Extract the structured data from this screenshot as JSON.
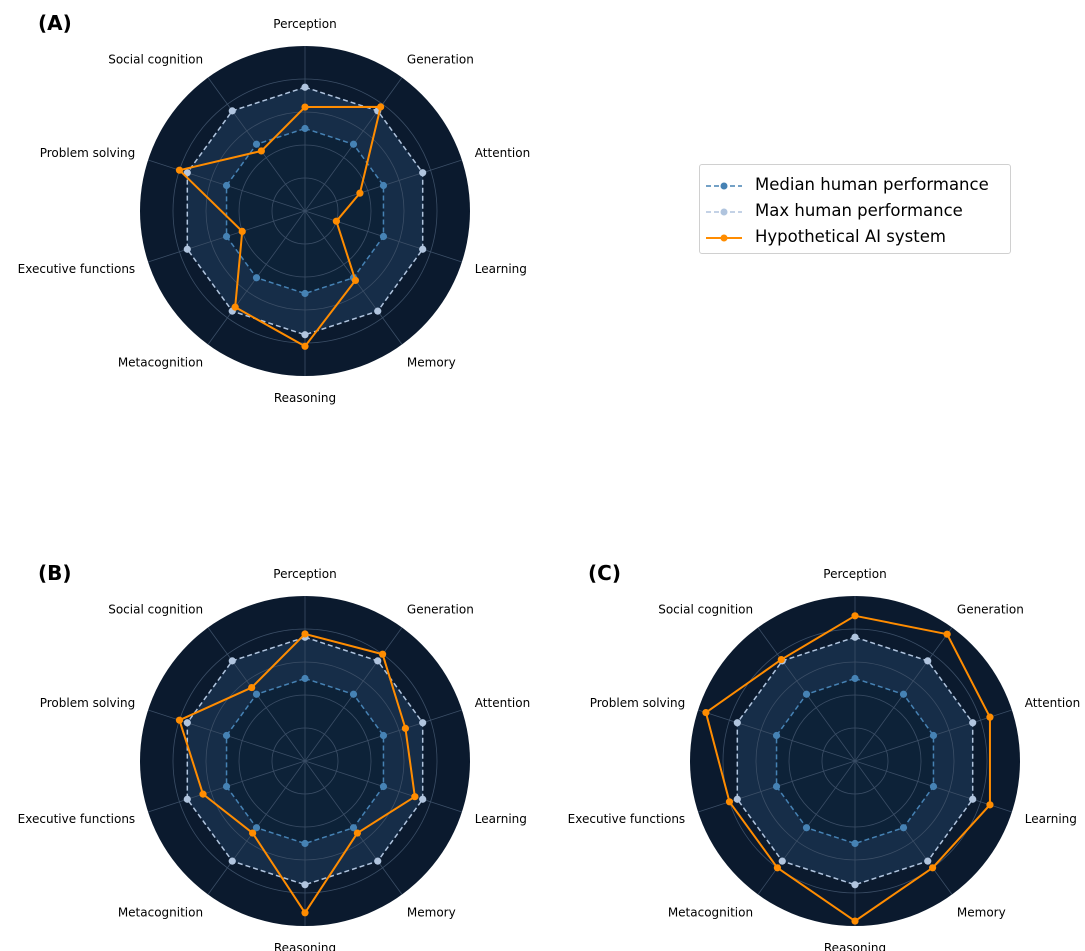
{
  "colors": {
    "background": "#0b1a2e",
    "human_band": "#162d48",
    "inner_band": "#0a1a2d",
    "grid": "#3b4e66",
    "median": "#4682b4",
    "max": "#b0c4de",
    "ai": "#ff8c00"
  },
  "legend": {
    "median_label": "Median human performance",
    "max_label": "Max human performance",
    "ai_label": "Hypothetical AI system"
  },
  "chart_data": [
    {
      "type": "radar",
      "panel": "(A)",
      "axes": [
        "Perception",
        "Generation",
        "Attention",
        "Learning",
        "Memory",
        "Reasoning",
        "Metacognition",
        "Executive functions",
        "Problem solving",
        "Social cognition"
      ],
      "rlim": [
        0,
        1
      ],
      "grid": true,
      "series": [
        {
          "name": "Median human performance",
          "style": "dashed",
          "values": [
            0.5,
            0.5,
            0.5,
            0.5,
            0.5,
            0.5,
            0.5,
            0.5,
            0.5,
            0.5
          ]
        },
        {
          "name": "Max human performance",
          "style": "dashed",
          "values": [
            0.75,
            0.75,
            0.75,
            0.75,
            0.75,
            0.75,
            0.75,
            0.75,
            0.75,
            0.75
          ]
        },
        {
          "name": "Hypothetical AI system",
          "style": "solid",
          "values": [
            0.63,
            0.78,
            0.35,
            0.2,
            0.52,
            0.82,
            0.72,
            0.4,
            0.8,
            0.45
          ]
        }
      ]
    },
    {
      "type": "radar",
      "panel": "(B)",
      "axes": [
        "Perception",
        "Generation",
        "Attention",
        "Learning",
        "Memory",
        "Reasoning",
        "Metacognition",
        "Executive functions",
        "Problem solving",
        "Social cognition"
      ],
      "rlim": [
        0,
        1
      ],
      "grid": true,
      "series": [
        {
          "name": "Median human performance",
          "style": "dashed",
          "values": [
            0.5,
            0.5,
            0.5,
            0.5,
            0.5,
            0.5,
            0.5,
            0.5,
            0.5,
            0.5
          ]
        },
        {
          "name": "Max human performance",
          "style": "dashed",
          "values": [
            0.75,
            0.75,
            0.75,
            0.75,
            0.75,
            0.75,
            0.75,
            0.75,
            0.75,
            0.75
          ]
        },
        {
          "name": "Hypothetical AI system",
          "style": "solid",
          "values": [
            0.77,
            0.8,
            0.64,
            0.7,
            0.54,
            0.92,
            0.54,
            0.65,
            0.8,
            0.55
          ]
        }
      ]
    },
    {
      "type": "radar",
      "panel": "(C)",
      "axes": [
        "Perception",
        "Generation",
        "Attention",
        "Learning",
        "Memory",
        "Reasoning",
        "Metacognition",
        "Executive functions",
        "Problem solving",
        "Social cognition"
      ],
      "rlim": [
        0,
        1
      ],
      "grid": true,
      "series": [
        {
          "name": "Median human performance",
          "style": "dashed",
          "values": [
            0.5,
            0.5,
            0.5,
            0.5,
            0.5,
            0.5,
            0.5,
            0.5,
            0.5,
            0.5
          ]
        },
        {
          "name": "Max human performance",
          "style": "dashed",
          "values": [
            0.75,
            0.75,
            0.75,
            0.75,
            0.75,
            0.75,
            0.75,
            0.75,
            0.75,
            0.75
          ]
        },
        {
          "name": "Hypothetical AI system",
          "style": "solid",
          "values": [
            0.88,
            0.95,
            0.86,
            0.86,
            0.8,
            0.97,
            0.8,
            0.8,
            0.95,
            0.76
          ]
        }
      ]
    }
  ]
}
